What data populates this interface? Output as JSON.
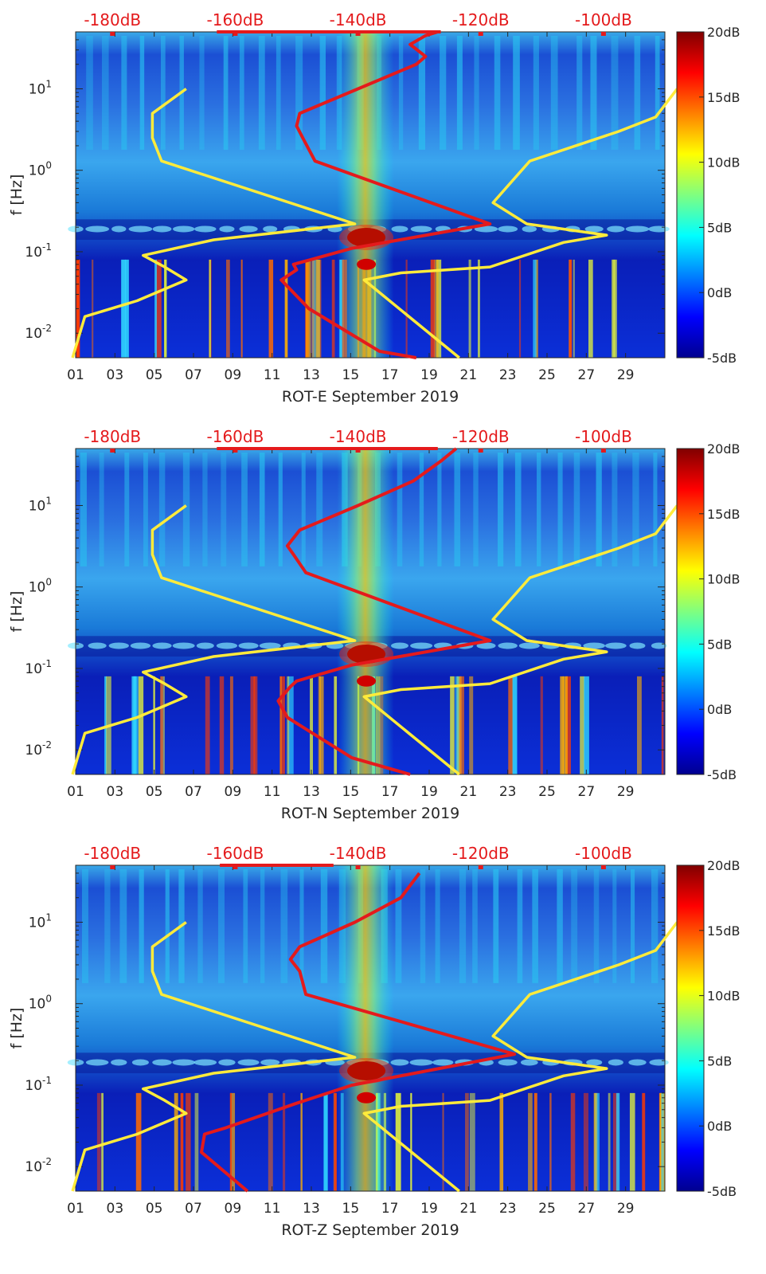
{
  "chart_data": [
    {
      "type": "heatmap",
      "title": "",
      "xlabel": "ROT-E September 2019",
      "ylabel": "f [Hz]",
      "x_ticks": [
        "01",
        "03",
        "05",
        "07",
        "09",
        "11",
        "13",
        "15",
        "17",
        "19",
        "21",
        "23",
        "25",
        "27",
        "29"
      ],
      "x_range_days": [
        1,
        31
      ],
      "y_scale": "log",
      "y_range_hz": [
        0.005,
        50
      ],
      "y_ticks": [
        {
          "value": 0.01,
          "base": "10",
          "exp": "-2"
        },
        {
          "value": 0.1,
          "base": "10",
          "exp": "-1"
        },
        {
          "value": 1,
          "base": "10",
          "exp": "0"
        },
        {
          "value": 10,
          "base": "10",
          "exp": "1"
        }
      ],
      "top_axis_labels": [
        "-180dB",
        "-160dB",
        "-140dB",
        "-120dB",
        "-100dB"
      ],
      "top_axis_range_db": [
        -186,
        -90
      ],
      "colorbar": {
        "labels": [
          "20dB",
          "15dB",
          "10dB",
          "5dB",
          "0dB",
          "-5dB"
        ],
        "range_db": [
          -5,
          20
        ],
        "colormap": "jet"
      },
      "overlay_series": [
        {
          "color": "#ffeb3b",
          "x_db": [
            -186.5,
            -184.5,
            -176,
            -168,
            -171.5,
            -175,
            -163.5,
            -140.5,
            -172,
            -173.5,
            -173.5,
            -168
          ],
          "f_hz": [
            0.005,
            0.016,
            0.025,
            0.045,
            0.065,
            0.09,
            0.14,
            0.22,
            1.3,
            2.5,
            5,
            10
          ]
        },
        {
          "color": "#ffeb3b",
          "x_db": [
            -123.5,
            -139,
            -133,
            -118.5,
            -106.5,
            -99.5,
            -112.5,
            -118,
            -112,
            -97.5,
            -91.5,
            -88
          ],
          "f_hz": [
            0.005,
            0.045,
            0.055,
            0.065,
            0.13,
            0.16,
            0.22,
            0.4,
            1.3,
            3,
            4.5,
            10
          ]
        },
        {
          "color": "#e41a1c",
          "x_db": [
            -130.5,
            -136.5,
            -148,
            -152.5,
            -150,
            -150.5,
            -141,
            -118.5,
            -147,
            -149,
            -150,
            -149.5,
            -140,
            -130.5,
            -129,
            -131.5,
            -129,
            -127,
            -126.5
          ],
          "f_hz": [
            0.005,
            0.006,
            0.02,
            0.045,
            0.06,
            0.07,
            0.11,
            0.22,
            1.3,
            2.5,
            3.5,
            5,
            10,
            20,
            25,
            35,
            45,
            50,
            50
          ]
        },
        {
          "color": "#e41a1c",
          "x_db": [
            -163,
            -127
          ],
          "f_hz": [
            50,
            50
          ]
        }
      ]
    },
    {
      "type": "heatmap",
      "title": "",
      "xlabel": "ROT-N September 2019",
      "ylabel": "f [Hz]",
      "x_ticks": [
        "01",
        "03",
        "05",
        "07",
        "09",
        "11",
        "13",
        "15",
        "17",
        "19",
        "21",
        "23",
        "25",
        "27",
        "29"
      ],
      "x_range_days": [
        1,
        31
      ],
      "y_scale": "log",
      "y_range_hz": [
        0.005,
        50
      ],
      "y_ticks": [
        {
          "value": 0.01,
          "base": "10",
          "exp": "-2"
        },
        {
          "value": 0.1,
          "base": "10",
          "exp": "-1"
        },
        {
          "value": 1,
          "base": "10",
          "exp": "0"
        },
        {
          "value": 10,
          "base": "10",
          "exp": "1"
        }
      ],
      "top_axis_labels": [
        "-180dB",
        "-160dB",
        "-140dB",
        "-120dB",
        "-100dB"
      ],
      "top_axis_range_db": [
        -186,
        -90
      ],
      "colorbar": {
        "labels": [
          "20dB",
          "15dB",
          "10dB",
          "5dB",
          "0dB",
          "-5dB"
        ],
        "range_db": [
          -5,
          20
        ],
        "colormap": "jet"
      },
      "overlay_series": [
        {
          "color": "#ffeb3b",
          "x_db": [
            -186.5,
            -184.5,
            -176,
            -168,
            -171.5,
            -175,
            -163.5,
            -140.5,
            -172,
            -173.5,
            -173.5,
            -168
          ],
          "f_hz": [
            0.005,
            0.016,
            0.025,
            0.045,
            0.065,
            0.09,
            0.14,
            0.22,
            1.3,
            2.5,
            5,
            10
          ]
        },
        {
          "color": "#ffeb3b",
          "x_db": [
            -123.5,
            -139,
            -133,
            -118.5,
            -106.5,
            -99.5,
            -112.5,
            -118,
            -112,
            -97.5,
            -91.5,
            -88
          ],
          "f_hz": [
            0.005,
            0.045,
            0.055,
            0.065,
            0.13,
            0.16,
            0.22,
            0.4,
            1.3,
            3,
            4.5,
            10
          ]
        },
        {
          "color": "#e41a1c",
          "x_db": [
            -131.5,
            -141,
            -151.5,
            -153,
            -151,
            -150,
            -141,
            -118.5,
            -148.5,
            -150.5,
            -151.5,
            -149.5,
            -140,
            -131,
            -126.5,
            -124
          ],
          "f_hz": [
            0.005,
            0.008,
            0.025,
            0.04,
            0.06,
            0.07,
            0.11,
            0.22,
            1.5,
            2.5,
            3.2,
            5,
            10,
            20,
            35,
            50
          ]
        },
        {
          "color": "#e41a1c",
          "x_db": [
            -163,
            -127
          ],
          "f_hz": [
            50,
            50
          ]
        }
      ]
    },
    {
      "type": "heatmap",
      "title": "",
      "xlabel": "ROT-Z September 2019",
      "ylabel": "f [Hz]",
      "x_ticks": [
        "01",
        "03",
        "05",
        "07",
        "09",
        "11",
        "13",
        "15",
        "17",
        "19",
        "21",
        "23",
        "25",
        "27",
        "29"
      ],
      "x_range_days": [
        1,
        31
      ],
      "y_scale": "log",
      "y_range_hz": [
        0.005,
        50
      ],
      "y_ticks": [
        {
          "value": 0.01,
          "base": "10",
          "exp": "-2"
        },
        {
          "value": 0.1,
          "base": "10",
          "exp": "-1"
        },
        {
          "value": 1,
          "base": "10",
          "exp": "0"
        },
        {
          "value": 10,
          "base": "10",
          "exp": "1"
        }
      ],
      "top_axis_labels": [
        "-180dB",
        "-160dB",
        "-140dB",
        "-120dB",
        "-100dB"
      ],
      "top_axis_range_db": [
        -186,
        -90
      ],
      "colorbar": {
        "labels": [
          "20dB",
          "15dB",
          "10dB",
          "5dB",
          "0dB",
          "-5dB"
        ],
        "range_db": [
          -5,
          20
        ],
        "colormap": "jet"
      },
      "overlay_series": [
        {
          "color": "#ffeb3b",
          "x_db": [
            -186.5,
            -184.5,
            -176,
            -168,
            -171.5,
            -175,
            -163.5,
            -140.5,
            -172,
            -173.5,
            -173.5,
            -168
          ],
          "f_hz": [
            0.005,
            0.016,
            0.025,
            0.045,
            0.065,
            0.09,
            0.14,
            0.22,
            1.3,
            2.5,
            5,
            10
          ]
        },
        {
          "color": "#ffeb3b",
          "x_db": [
            -123.5,
            -139,
            -133,
            -118.5,
            -106.5,
            -99.5,
            -112.5,
            -118,
            -112,
            -97.5,
            -91.5,
            -88
          ],
          "f_hz": [
            0.005,
            0.045,
            0.055,
            0.065,
            0.13,
            0.16,
            0.22,
            0.4,
            1.3,
            3,
            4.5,
            10
          ]
        },
        {
          "color": "#e41a1c",
          "x_db": [
            -158,
            -165.5,
            -165,
            -161.5,
            -150,
            -141,
            -114.5,
            -148.5,
            -149.5,
            -151,
            -149.5,
            -140.5,
            -133,
            -130
          ],
          "f_hz": [
            0.005,
            0.015,
            0.025,
            0.03,
            0.06,
            0.1,
            0.24,
            1.3,
            2.5,
            3.5,
            5,
            10,
            20,
            40
          ]
        },
        {
          "color": "#e41a1c",
          "x_db": [
            -162.5,
            -144
          ],
          "f_hz": [
            50,
            50
          ]
        }
      ]
    }
  ]
}
